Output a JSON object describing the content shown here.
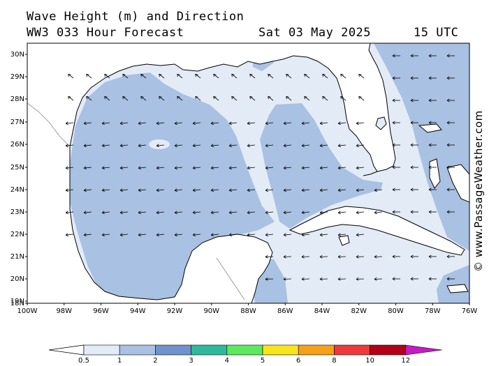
{
  "header": {
    "title": "Wave Height (m) and Direction",
    "model": "WW3 033 Hour Forecast",
    "date": "Sat 03 May 2025",
    "time": "15 UTC"
  },
  "credit": "© www.PassageWeather.com",
  "axes": {
    "lon_labels": [
      "100W",
      "98W",
      "96W",
      "94W",
      "92W",
      "90W",
      "88W",
      "86W",
      "84W",
      "82W",
      "80W",
      "78W",
      "76W"
    ],
    "lat_labels": [
      "30N",
      "29N",
      "28N",
      "27N",
      "26N",
      "25N",
      "24N",
      "23N",
      "22N",
      "21N",
      "20N",
      "19N",
      "18N"
    ]
  },
  "legend": {
    "ticks": [
      "0.5",
      "1",
      "2",
      "3",
      "4",
      "5",
      "6",
      "8",
      "10",
      "12"
    ],
    "colors": [
      "#e3ebf7",
      "#a9c1e2",
      "#6f93cd",
      "#2fb99b",
      "#5ee85e",
      "#f6e51a",
      "#f5a11a",
      "#ee3a3a",
      "#b30019",
      "#c61ac6"
    ]
  },
  "colors": {
    "water_low": "#e3ebf7",
    "water_mid": "#a9c1e2",
    "land": "#ffffff",
    "coast": "#000000"
  }
}
